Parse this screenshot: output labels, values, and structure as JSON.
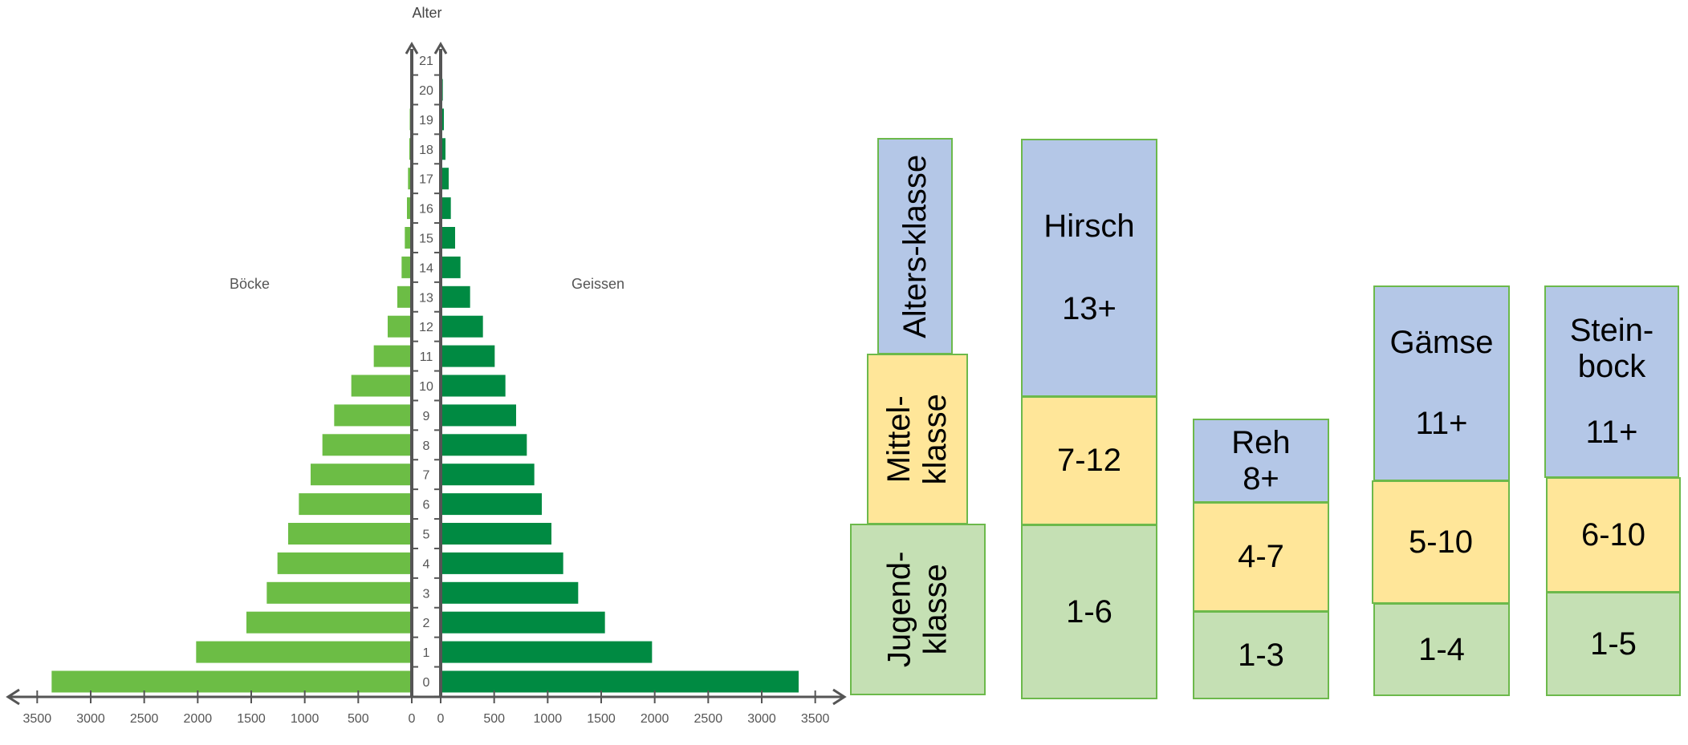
{
  "chart_data": {
    "type": "bar",
    "orientation": "horizontal",
    "layout": "population-pyramid",
    "title": "Alter",
    "categories": [
      "0",
      "1",
      "2",
      "3",
      "4",
      "5",
      "6",
      "7",
      "8",
      "9",
      "10",
      "11",
      "12",
      "13",
      "14",
      "15",
      "16",
      "17",
      "18",
      "19",
      "20",
      "21"
    ],
    "series": [
      {
        "name": "Böcke",
        "side": "left",
        "color": "#6cbd45",
        "values": [
          3350,
          2000,
          1530,
          1340,
          1240,
          1140,
          1040,
          930,
          820,
          710,
          550,
          340,
          210,
          120,
          80,
          50,
          30,
          20,
          8,
          4,
          0,
          0
        ]
      },
      {
        "name": "Geissen",
        "side": "right",
        "color": "#008a42",
        "values": [
          3330,
          1960,
          1520,
          1270,
          1130,
          1020,
          930,
          860,
          790,
          690,
          590,
          490,
          380,
          260,
          170,
          120,
          80,
          60,
          30,
          15,
          5,
          0
        ]
      }
    ],
    "xticks": [
      "3500",
      "3000",
      "2500",
      "2000",
      "1500",
      "1000",
      "500",
      "0",
      "0",
      "500",
      "1000",
      "1500",
      "2000",
      "2500",
      "3000",
      "3500"
    ],
    "xlim": [
      0,
      3500
    ],
    "grid": false,
    "legend": "labels above each side"
  },
  "age_classes": {
    "headers": {
      "alter": "Alters-klasse",
      "mittel": "Mittel-\nklasse",
      "jugend": "Jugend-\nklasse"
    },
    "species": [
      {
        "name": "Hirsch",
        "old": "13+",
        "middle": "7-12",
        "young": "1-6"
      },
      {
        "name": "Reh",
        "old": "8+",
        "middle": "4-7",
        "young": "1-3"
      },
      {
        "name": "Gämse",
        "old": "11+",
        "middle": "5-10",
        "young": "1-4"
      },
      {
        "name": "Stein-\nbock",
        "old": "11+",
        "middle": "6-10",
        "young": "1-5"
      }
    ]
  },
  "colors": {
    "old_class": "#b4c7e7",
    "middle_class": "#ffe699",
    "young_class": "#c5e0b4",
    "border": "#6cb94b",
    "axis": "#555555"
  }
}
